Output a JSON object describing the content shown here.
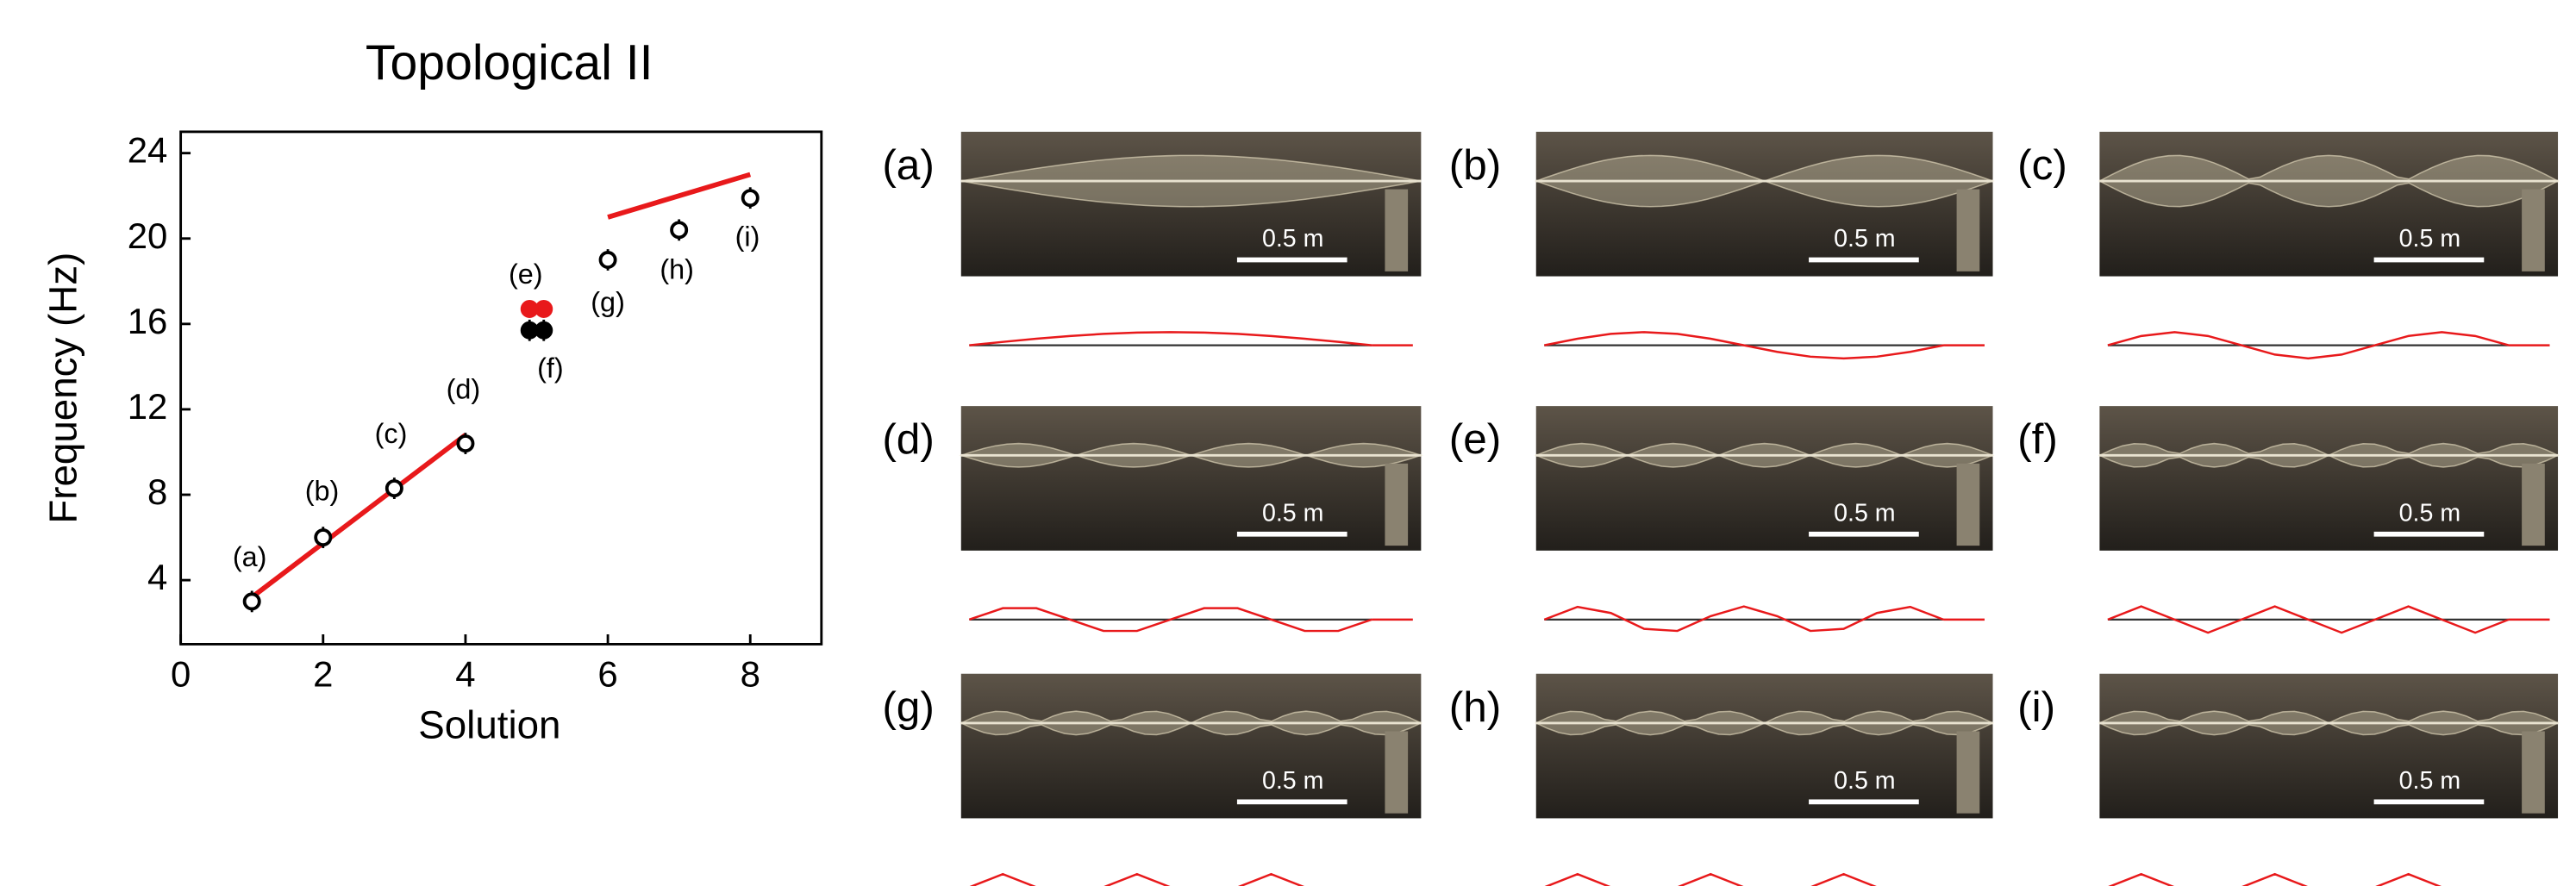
{
  "chart_data": {
    "type": "scatter",
    "title": "Topological II",
    "xlabel": "Solution",
    "ylabel": "Frequency (Hz)",
    "xlim": [
      0,
      9
    ],
    "ylim": [
      1,
      25
    ],
    "xticks": [
      0,
      2,
      4,
      6,
      8
    ],
    "yticks": [
      4,
      8,
      12,
      16,
      20,
      24
    ],
    "series": [
      {
        "color": "#000000",
        "marker": "open",
        "x": [
          1,
          2,
          3,
          4,
          6,
          7,
          8
        ],
        "values": [
          3.0,
          6.0,
          8.3,
          10.4,
          19.0,
          20.4,
          21.9
        ],
        "errors": [
          0.5,
          0.5,
          0.5,
          0.5,
          0.5,
          0.5,
          0.5
        ]
      },
      {
        "color": "#000000",
        "marker": "filled",
        "x": [
          4.9,
          5.1
        ],
        "values": [
          15.7,
          15.7
        ],
        "errors": [
          0.5,
          0.5
        ]
      },
      {
        "color": "#e8191b",
        "marker": "filled",
        "x": [
          4.9,
          5.1
        ],
        "values": [
          16.7,
          16.7
        ]
      }
    ],
    "lines": [
      {
        "color": "#e8191b",
        "x": [
          1,
          4
        ],
        "values": [
          3.2,
          10.8
        ]
      },
      {
        "color": "#e8191b",
        "x": [
          6,
          8
        ],
        "values": [
          21,
          23
        ]
      }
    ],
    "annotations": [
      "(a)",
      "(b)",
      "(c)",
      "(d)",
      "(e)",
      "(f)",
      "(g)",
      "(h)",
      "(i)"
    ]
  },
  "panels": [
    {
      "label": "(a)",
      "scale": "0.5 m"
    },
    {
      "label": "(b)",
      "scale": "0.5 m"
    },
    {
      "label": "(c)",
      "scale": "0.5 m"
    },
    {
      "label": "(d)",
      "scale": "0.5 m"
    },
    {
      "label": "(e)",
      "scale": "0.5 m"
    },
    {
      "label": "(f)",
      "scale": "0.5 m"
    },
    {
      "label": "(g)",
      "scale": "0.5 m"
    },
    {
      "label": "(h)",
      "scale": "0.5 m"
    },
    {
      "label": "(i)",
      "scale": "0.5 m"
    }
  ]
}
